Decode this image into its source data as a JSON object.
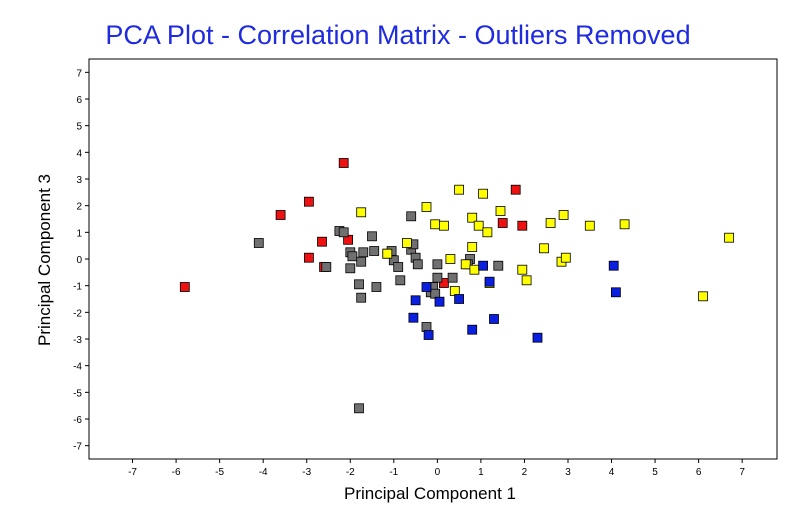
{
  "chart_data": {
    "type": "scatter",
    "title": "PCA Plot - Correlation Matrix - Outliers Removed",
    "xlabel": "Principal Component 1",
    "ylabel": "Principal Component 3",
    "xlim": [
      -8,
      7.8
    ],
    "ylim": [
      -7.5,
      7.5
    ],
    "xticks": [
      -7,
      -6,
      -5,
      -4,
      -3,
      -2,
      -1,
      0,
      1,
      2,
      3,
      4,
      5,
      6,
      7
    ],
    "yticks": [
      -7,
      -6,
      -5,
      -4,
      -3,
      -2,
      -1,
      0,
      1,
      2,
      3,
      4,
      5,
      6,
      7
    ],
    "grid": false,
    "marker": "square",
    "colors": {
      "red": "#ee1111",
      "grey": "#707070",
      "yellow": "#ffff00",
      "blue": "#0b1fe0",
      "title": "#1f2be0"
    },
    "series": [
      {
        "color": "red",
        "points": [
          [
            -5.8,
            -1.05
          ],
          [
            -3.6,
            1.65
          ],
          [
            -2.95,
            2.15
          ],
          [
            -2.95,
            0.05
          ],
          [
            -2.65,
            0.65
          ],
          [
            -2.6,
            -0.3
          ],
          [
            -2.15,
            3.6
          ],
          [
            -2.05,
            0.72
          ],
          [
            0.15,
            -0.9
          ],
          [
            1.5,
            1.35
          ],
          [
            1.8,
            2.6
          ],
          [
            1.95,
            1.25
          ]
        ]
      },
      {
        "color": "grey",
        "points": [
          [
            -4.1,
            0.6
          ],
          [
            -2.55,
            -0.3
          ],
          [
            -2.25,
            1.05
          ],
          [
            -2.15,
            1.0
          ],
          [
            -2.0,
            0.25
          ],
          [
            -1.95,
            0.1
          ],
          [
            -2.0,
            -0.35
          ],
          [
            -1.75,
            -0.1
          ],
          [
            -1.7,
            0.25
          ],
          [
            -1.5,
            0.85
          ],
          [
            -1.45,
            0.3
          ],
          [
            -1.4,
            -1.05
          ],
          [
            -1.15,
            0.2
          ],
          [
            -1.05,
            0.3
          ],
          [
            -1.0,
            -0.05
          ],
          [
            -0.9,
            -0.3
          ],
          [
            -0.85,
            -0.8
          ],
          [
            -0.6,
            0.35
          ],
          [
            -0.55,
            0.55
          ],
          [
            -0.5,
            0.05
          ],
          [
            -0.45,
            -0.2
          ],
          [
            -0.6,
            1.6
          ],
          [
            -1.75,
            -1.45
          ],
          [
            -1.8,
            -0.95
          ],
          [
            -0.25,
            -2.55
          ],
          [
            -0.15,
            -1.25
          ],
          [
            -0.1,
            -1.05
          ],
          [
            -0.05,
            -1.3
          ],
          [
            0.0,
            -0.2
          ],
          [
            0.0,
            -0.7
          ],
          [
            0.35,
            -0.7
          ],
          [
            0.75,
            0.0
          ],
          [
            0.7,
            -0.2
          ],
          [
            1.4,
            -0.25
          ],
          [
            -1.8,
            -5.6
          ]
        ]
      },
      {
        "color": "yellow",
        "points": [
          [
            -1.75,
            1.75
          ],
          [
            -1.15,
            0.2
          ],
          [
            -0.7,
            0.6
          ],
          [
            -0.25,
            1.95
          ],
          [
            -0.05,
            1.3
          ],
          [
            0.15,
            1.25
          ],
          [
            0.3,
            0.0
          ],
          [
            0.4,
            -1.2
          ],
          [
            0.5,
            2.6
          ],
          [
            0.65,
            -0.2
          ],
          [
            0.8,
            1.55
          ],
          [
            0.8,
            0.45
          ],
          [
            0.85,
            -0.4
          ],
          [
            0.95,
            1.25
          ],
          [
            1.05,
            2.45
          ],
          [
            1.15,
            1.0
          ],
          [
            1.2,
            -0.9
          ],
          [
            1.45,
            1.8
          ],
          [
            1.95,
            -0.4
          ],
          [
            2.05,
            -0.8
          ],
          [
            2.45,
            0.4
          ],
          [
            2.6,
            1.35
          ],
          [
            2.85,
            -0.1
          ],
          [
            2.9,
            1.65
          ],
          [
            2.95,
            0.05
          ],
          [
            3.5,
            1.25
          ],
          [
            4.3,
            1.3
          ],
          [
            6.1,
            -1.4
          ],
          [
            6.7,
            0.8
          ]
        ]
      },
      {
        "color": "blue",
        "points": [
          [
            -0.55,
            -2.2
          ],
          [
            -0.5,
            -1.55
          ],
          [
            -0.25,
            -1.05
          ],
          [
            -0.2,
            -2.85
          ],
          [
            0.05,
            -1.6
          ],
          [
            0.5,
            -1.5
          ],
          [
            0.8,
            -2.65
          ],
          [
            1.05,
            -0.25
          ],
          [
            1.2,
            -0.85
          ],
          [
            1.3,
            -2.25
          ],
          [
            2.3,
            -2.95
          ],
          [
            4.05,
            -0.25
          ],
          [
            4.1,
            -1.25
          ]
        ]
      }
    ]
  }
}
